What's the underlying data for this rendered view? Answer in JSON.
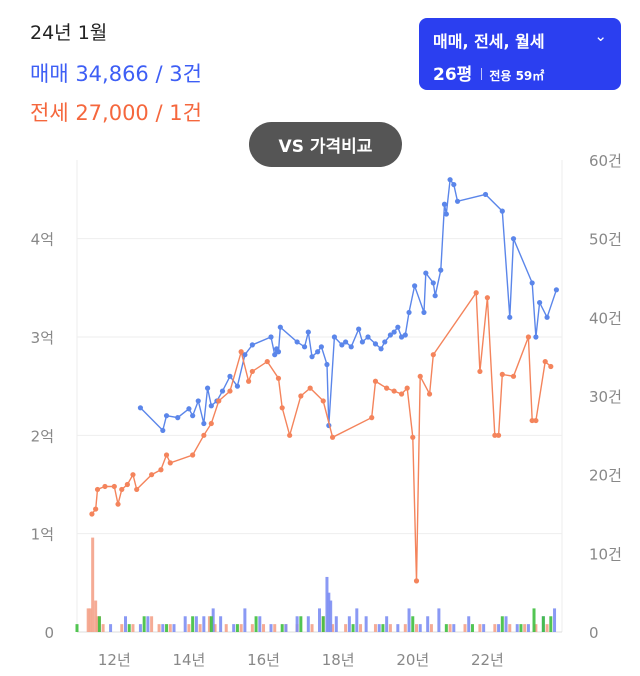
{
  "header": {
    "period": "24년 1월",
    "sale_summary": "매매 34,866 / 3건",
    "rent_summary": "전세 27,000 / 1건"
  },
  "selector": {
    "deal_types": "매매, 전세, 월세",
    "pyeong": "26평",
    "area": "전용 59㎡",
    "chevron_icon": "chevron-down-icon"
  },
  "compare_button": {
    "label": "VS 가격비교"
  },
  "colors": {
    "sale": "#3d5ef5",
    "sale_line": "#5b86ea",
    "rent": "#f5673d",
    "rent_line": "#f4845c",
    "monthly": "#3fbf3f",
    "selector_bg": "#2b3ff0",
    "compare_bg": "#555555"
  },
  "chart_data": {
    "type": "line",
    "x_ticks": [
      "12년",
      "14년",
      "16년",
      "18년",
      "20년",
      "22년"
    ],
    "y_left": {
      "ticks": [
        "0",
        "1억",
        "2억",
        "3억",
        "4억"
      ],
      "range_eok": [
        0,
        4.8
      ]
    },
    "y_right": {
      "ticks": [
        "0",
        "10건",
        "20건",
        "30건",
        "40건",
        "50건",
        "60건"
      ],
      "range_count": [
        0,
        60
      ]
    },
    "grid": true,
    "price_series": [
      {
        "key": "sale",
        "points": [
          [
            2012.7,
            2.28
          ],
          [
            2013.3,
            2.05
          ],
          [
            2013.4,
            2.2
          ],
          [
            2013.7,
            2.18
          ],
          [
            2014.0,
            2.27
          ],
          [
            2014.1,
            2.2
          ],
          [
            2014.25,
            2.35
          ],
          [
            2014.4,
            2.12
          ],
          [
            2014.5,
            2.48
          ],
          [
            2014.6,
            2.3
          ],
          [
            2014.75,
            2.35
          ],
          [
            2014.9,
            2.45
          ],
          [
            2015.1,
            2.6
          ],
          [
            2015.3,
            2.5
          ],
          [
            2015.5,
            2.82
          ],
          [
            2015.7,
            2.92
          ],
          [
            2016.2,
            3.0
          ],
          [
            2016.3,
            2.82
          ],
          [
            2016.35,
            2.88
          ],
          [
            2016.4,
            2.85
          ],
          [
            2016.45,
            3.1
          ],
          [
            2016.9,
            2.95
          ],
          [
            2017.1,
            2.9
          ],
          [
            2017.2,
            3.05
          ],
          [
            2017.3,
            2.8
          ],
          [
            2017.45,
            2.85
          ],
          [
            2017.55,
            2.9
          ],
          [
            2017.7,
            2.72
          ],
          [
            2017.75,
            2.1
          ],
          [
            2017.9,
            3.0
          ],
          [
            2018.1,
            2.92
          ],
          [
            2018.2,
            2.95
          ],
          [
            2018.35,
            2.9
          ],
          [
            2018.55,
            3.08
          ],
          [
            2018.65,
            2.95
          ],
          [
            2018.8,
            3.0
          ],
          [
            2019.0,
            2.93
          ],
          [
            2019.15,
            2.88
          ],
          [
            2019.25,
            2.95
          ],
          [
            2019.4,
            3.02
          ],
          [
            2019.5,
            3.05
          ],
          [
            2019.6,
            3.1
          ],
          [
            2019.7,
            3.0
          ],
          [
            2019.8,
            3.02
          ],
          [
            2019.9,
            3.25
          ],
          [
            2020.05,
            3.52
          ],
          [
            2020.3,
            3.25
          ],
          [
            2020.35,
            3.65
          ],
          [
            2020.55,
            3.55
          ],
          [
            2020.6,
            3.42
          ],
          [
            2020.75,
            3.68
          ],
          [
            2020.85,
            4.35
          ],
          [
            2020.9,
            4.25
          ],
          [
            2021.0,
            4.6
          ],
          [
            2021.1,
            4.55
          ],
          [
            2021.2,
            4.38
          ],
          [
            2021.95,
            4.45
          ],
          [
            2022.4,
            4.28
          ],
          [
            2022.6,
            3.2
          ],
          [
            2022.7,
            4.0
          ],
          [
            2023.2,
            3.55
          ],
          [
            2023.3,
            3.0
          ],
          [
            2023.4,
            3.35
          ],
          [
            2023.6,
            3.2
          ],
          [
            2023.85,
            3.48
          ]
        ]
      },
      {
        "key": "rent",
        "points": [
          [
            2011.4,
            1.2
          ],
          [
            2011.5,
            1.25
          ],
          [
            2011.55,
            1.45
          ],
          [
            2011.75,
            1.48
          ],
          [
            2012.0,
            1.48
          ],
          [
            2012.1,
            1.3
          ],
          [
            2012.2,
            1.45
          ],
          [
            2012.35,
            1.5
          ],
          [
            2012.5,
            1.6
          ],
          [
            2012.6,
            1.45
          ],
          [
            2013.0,
            1.6
          ],
          [
            2013.25,
            1.65
          ],
          [
            2013.4,
            1.8
          ],
          [
            2013.5,
            1.72
          ],
          [
            2014.1,
            1.8
          ],
          [
            2014.4,
            2.0
          ],
          [
            2014.6,
            2.12
          ],
          [
            2014.8,
            2.35
          ],
          [
            2015.1,
            2.45
          ],
          [
            2015.4,
            2.85
          ],
          [
            2015.6,
            2.55
          ],
          [
            2015.7,
            2.65
          ],
          [
            2016.1,
            2.75
          ],
          [
            2016.4,
            2.58
          ],
          [
            2016.5,
            2.28
          ],
          [
            2016.7,
            2.0
          ],
          [
            2017.0,
            2.4
          ],
          [
            2017.25,
            2.48
          ],
          [
            2017.6,
            2.35
          ],
          [
            2017.85,
            1.98
          ],
          [
            2018.9,
            2.18
          ],
          [
            2019.0,
            2.55
          ],
          [
            2019.3,
            2.48
          ],
          [
            2019.5,
            2.45
          ],
          [
            2019.7,
            2.42
          ],
          [
            2019.85,
            2.48
          ],
          [
            2020.0,
            1.98
          ],
          [
            2020.1,
            0.52
          ],
          [
            2020.2,
            2.6
          ],
          [
            2020.45,
            2.42
          ],
          [
            2020.55,
            2.82
          ],
          [
            2021.7,
            3.45
          ],
          [
            2021.8,
            2.65
          ],
          [
            2022.0,
            3.4
          ],
          [
            2022.2,
            2.0
          ],
          [
            2022.3,
            2.0
          ],
          [
            2022.4,
            2.62
          ],
          [
            2022.7,
            2.6
          ],
          [
            2023.1,
            3.0
          ],
          [
            2023.2,
            2.15
          ],
          [
            2023.3,
            2.15
          ],
          [
            2023.55,
            2.75
          ],
          [
            2023.7,
            2.7
          ]
        ]
      }
    ],
    "volume_bars": [
      {
        "key": "rent",
        "x": [
          2011.3,
          2011.35,
          2011.42,
          2011.5,
          2011.55,
          2011.6,
          2011.7,
          2012.2,
          2012.5,
          2013.0,
          2013.2,
          2013.5,
          2014.0,
          2014.3,
          2014.55,
          2014.7,
          2015.0,
          2015.4,
          2015.7,
          2016.0,
          2016.3,
          2016.6,
          2016.9,
          2017.3,
          2017.6,
          2017.85,
          2018.2,
          2018.6,
          2019.0,
          2019.4,
          2019.8,
          2020.1,
          2020.5,
          2021.0,
          2021.4,
          2021.8,
          2022.2,
          2022.6,
          2023.0,
          2023.3,
          2023.6
        ],
        "count": [
          3,
          3,
          12,
          4,
          2,
          2,
          1,
          1,
          1,
          2,
          1,
          1,
          1,
          1,
          2,
          1,
          1,
          1,
          1,
          1,
          1,
          1,
          1,
          1,
          2,
          1,
          1,
          1,
          1,
          1,
          1,
          1,
          1,
          1,
          1,
          1,
          1,
          1,
          1,
          1,
          1
        ]
      },
      {
        "key": "sale",
        "x": [
          2011.9,
          2012.3,
          2012.7,
          2012.9,
          2013.3,
          2013.6,
          2013.9,
          2014.2,
          2014.4,
          2014.65,
          2014.85,
          2015.2,
          2015.5,
          2015.9,
          2016.2,
          2016.6,
          2016.9,
          2017.2,
          2017.5,
          2017.7,
          2017.75,
          2017.8,
          2017.95,
          2018.3,
          2018.5,
          2018.75,
          2019.1,
          2019.3,
          2019.6,
          2019.9,
          2020.2,
          2020.4,
          2020.7,
          2021.1,
          2021.5,
          2021.9,
          2022.3,
          2022.5,
          2022.8,
          2023.1,
          2023.5,
          2023.8
        ],
        "count": [
          1,
          2,
          1,
          2,
          1,
          1,
          2,
          2,
          2,
          3,
          2,
          1,
          3,
          2,
          1,
          1,
          2,
          2,
          3,
          7,
          5,
          4,
          2,
          2,
          3,
          2,
          1,
          2,
          1,
          3,
          1,
          2,
          3,
          1,
          2,
          1,
          1,
          2,
          1,
          1,
          2,
          3
        ]
      },
      {
        "key": "monthly",
        "x": [
          2011.0,
          2011.6,
          2012.4,
          2012.8,
          2013.4,
          2014.1,
          2014.6,
          2015.3,
          2015.8,
          2016.5,
          2017.0,
          2017.6,
          2018.4,
          2019.2,
          2020.0,
          2020.9,
          2021.6,
          2022.4,
          2022.9,
          2023.25,
          2023.5,
          2023.7
        ],
        "count": [
          1,
          2,
          1,
          2,
          1,
          2,
          2,
          1,
          2,
          1,
          2,
          2,
          1,
          1,
          2,
          1,
          1,
          2,
          1,
          3,
          2,
          2
        ]
      }
    ]
  }
}
